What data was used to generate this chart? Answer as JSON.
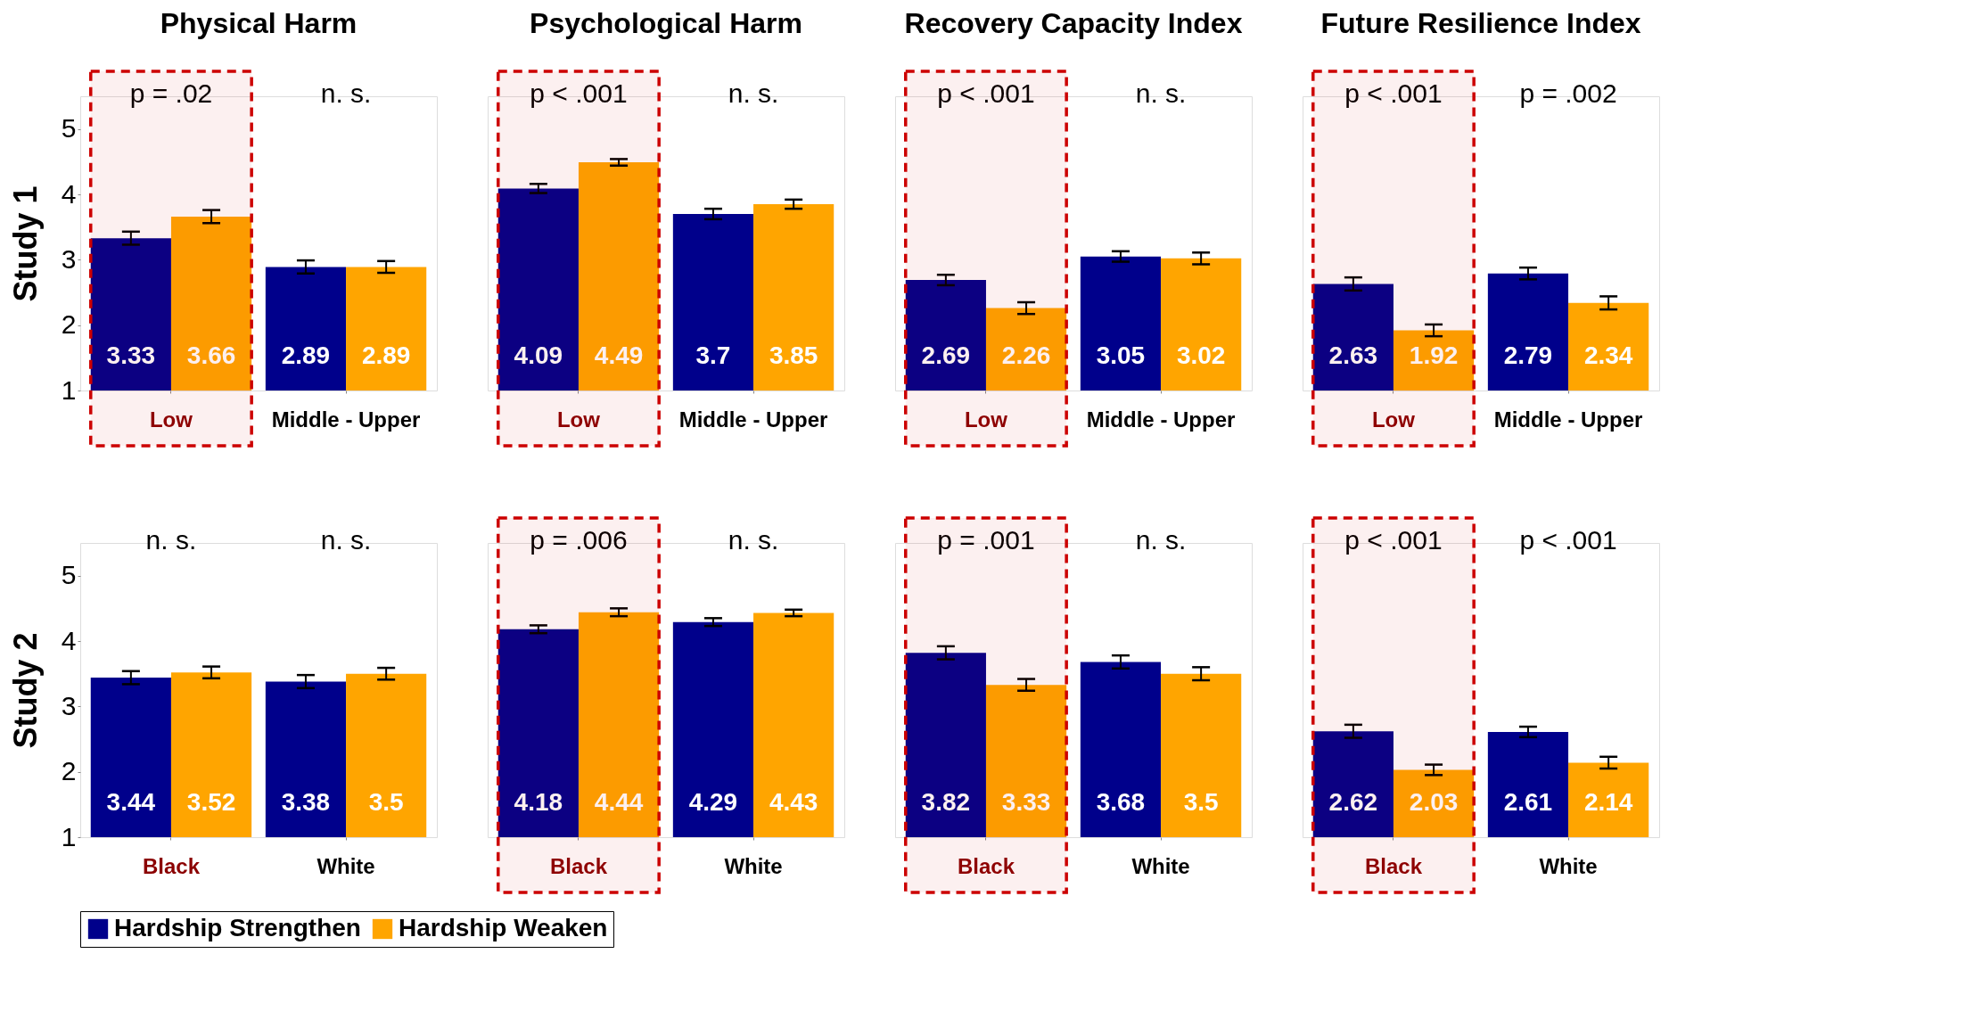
{
  "chart_data": [
    {
      "type": "bar",
      "title": "Physical Harm",
      "ylabel": "Study 1",
      "categories": [
        "Low",
        "Middle - Upper"
      ],
      "ylim": [
        1,
        5.5
      ],
      "yticks": [
        1,
        2,
        3,
        4,
        5
      ],
      "data_labels": true,
      "legend": "bottom",
      "series": [
        {
          "name": "Hardship Strengthen",
          "color": "#00008b",
          "values": [
            3.33,
            2.89
          ],
          "errors": [
            0.1,
            0.1
          ]
        },
        {
          "name": "Hardship Weaken",
          "color": "#ffa500",
          "values": [
            3.66,
            2.89
          ],
          "errors": [
            0.1,
            0.09
          ]
        }
      ],
      "annotations": [
        "p = .02",
        "n. s."
      ],
      "bands": [
        {
          "axis": "x",
          "from": "Low",
          "to": "Low",
          "color": "#cc0000"
        }
      ]
    },
    {
      "type": "bar",
      "title": "Psychological Harm",
      "categories": [
        "Low",
        "Middle - Upper"
      ],
      "ylim": [
        1,
        5.5
      ],
      "tick_labels": "x",
      "data_labels": true,
      "legend": "bottom",
      "series": [
        {
          "name": "Hardship Strengthen",
          "color": "#00008b",
          "values": [
            4.09,
            3.7
          ],
          "errors": [
            0.07,
            0.08
          ]
        },
        {
          "name": "Hardship Weaken",
          "color": "#ffa500",
          "values": [
            4.49,
            3.85
          ],
          "errors": [
            0.05,
            0.07
          ]
        }
      ],
      "annotations": [
        "p < .001",
        "n. s."
      ],
      "bands": [
        {
          "axis": "x",
          "from": "Low",
          "to": "Low",
          "color": "#cc0000"
        }
      ]
    },
    {
      "type": "bar",
      "title": "Recovery Capacity Index",
      "categories": [
        "Low",
        "Middle - Upper"
      ],
      "ylim": [
        1,
        5.5
      ],
      "tick_labels": "x",
      "data_labels": true,
      "legend": "bottom",
      "series": [
        {
          "name": "Hardship Strengthen",
          "color": "#00008b",
          "values": [
            2.69,
            3.05
          ],
          "errors": [
            0.08,
            0.08
          ]
        },
        {
          "name": "Hardship Weaken",
          "color": "#ffa500",
          "values": [
            2.26,
            3.02
          ],
          "errors": [
            0.09,
            0.09
          ]
        }
      ],
      "annotations": [
        "p < .001",
        "n. s."
      ],
      "bands": [
        {
          "axis": "x",
          "from": "Low",
          "to": "Low",
          "color": "#cc0000"
        }
      ]
    },
    {
      "type": "bar",
      "title": "Future Resilience Index",
      "categories": [
        "Low",
        "Middle - Upper"
      ],
      "ylim": [
        1,
        5.5
      ],
      "tick_labels": "x",
      "data_labels": true,
      "legend": "bottom",
      "series": [
        {
          "name": "Hardship Strengthen",
          "color": "#00008b",
          "values": [
            2.63,
            2.79
          ],
          "errors": [
            0.1,
            0.09
          ]
        },
        {
          "name": "Hardship Weaken",
          "color": "#ffa500",
          "values": [
            1.92,
            2.34
          ],
          "errors": [
            0.09,
            0.1
          ]
        }
      ],
      "annotations": [
        "p < .001",
        "p = .002"
      ],
      "bands": [
        {
          "axis": "x",
          "from": "Low",
          "to": "Low",
          "color": "#cc0000"
        }
      ]
    },
    {
      "type": "bar",
      "ylabel": "Study 2",
      "categories": [
        "Black",
        "White"
      ],
      "ylim": [
        1,
        5.5
      ],
      "yticks": [
        1,
        2,
        3,
        4,
        5
      ],
      "data_labels": true,
      "legend": "bottom",
      "series": [
        {
          "name": "Hardship Strengthen",
          "color": "#00008b",
          "values": [
            3.44,
            3.38
          ],
          "errors": [
            0.1,
            0.1
          ]
        },
        {
          "name": "Hardship Weaken",
          "color": "#ffa500",
          "values": [
            3.52,
            3.5
          ],
          "errors": [
            0.09,
            0.09
          ]
        }
      ],
      "annotations": [
        "n. s.",
        "n. s."
      ]
    },
    {
      "type": "bar",
      "categories": [
        "Black",
        "White"
      ],
      "ylim": [
        1,
        5.5
      ],
      "tick_labels": "x",
      "data_labels": true,
      "legend": "bottom",
      "series": [
        {
          "name": "Hardship Strengthen",
          "color": "#00008b",
          "values": [
            4.18,
            4.29
          ],
          "errors": [
            0.06,
            0.06
          ]
        },
        {
          "name": "Hardship Weaken",
          "color": "#ffa500",
          "values": [
            4.44,
            4.43
          ],
          "errors": [
            0.06,
            0.05
          ]
        }
      ],
      "annotations": [
        "p = .006",
        "n. s."
      ],
      "bands": [
        {
          "axis": "x",
          "from": "Black",
          "to": "Black",
          "color": "#cc0000"
        }
      ]
    },
    {
      "type": "bar",
      "categories": [
        "Black",
        "White"
      ],
      "ylim": [
        1,
        5.5
      ],
      "tick_labels": "x",
      "data_labels": true,
      "legend": "bottom",
      "series": [
        {
          "name": "Hardship Strengthen",
          "color": "#00008b",
          "values": [
            3.82,
            3.68
          ],
          "errors": [
            0.1,
            0.1
          ]
        },
        {
          "name": "Hardship Weaken",
          "color": "#ffa500",
          "values": [
            3.33,
            3.5
          ],
          "errors": [
            0.09,
            0.1
          ]
        }
      ],
      "annotations": [
        "p = .001",
        "n. s."
      ],
      "bands": [
        {
          "axis": "x",
          "from": "Black",
          "to": "Black",
          "color": "#cc0000"
        }
      ]
    },
    {
      "type": "bar",
      "categories": [
        "Black",
        "White"
      ],
      "ylim": [
        1,
        5.5
      ],
      "tick_labels": "x",
      "data_labels": true,
      "legend": "bottom",
      "series": [
        {
          "name": "Hardship Strengthen",
          "color": "#00008b",
          "values": [
            2.62,
            2.61
          ],
          "errors": [
            0.1,
            0.08
          ]
        },
        {
          "name": "Hardship Weaken",
          "color": "#ffa500",
          "values": [
            2.03,
            2.14
          ],
          "errors": [
            0.08,
            0.09
          ]
        }
      ],
      "annotations": [
        "p < .001",
        "p < .001"
      ],
      "bands": [
        {
          "axis": "x",
          "from": "Black",
          "to": "Black",
          "color": "#cc0000"
        }
      ]
    }
  ]
}
